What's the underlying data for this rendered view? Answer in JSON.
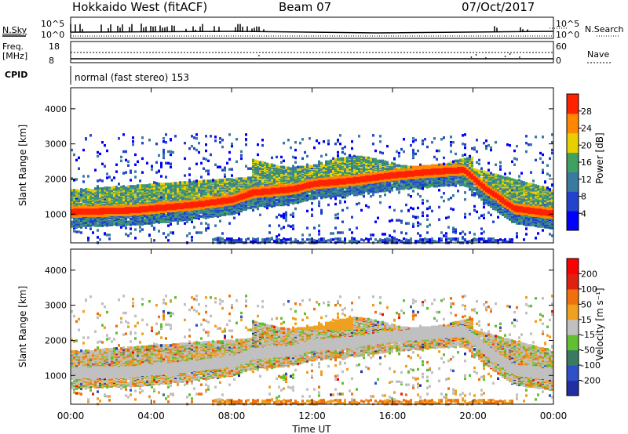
{
  "header": {
    "station": "Hokkaido West (fitACF)",
    "beam": "Beam 07",
    "date": "07/Oct/2017"
  },
  "side_labels": {
    "nsky": "N.Sky",
    "nsearch": "N.Search",
    "freq": "Freq.",
    "freq_unit": "[MHz]",
    "nave": "Nave",
    "cpid": "CPID",
    "noise_top": "10^5",
    "noise_bottom": "10^0",
    "freq_top": "18",
    "freq_bottom": "8",
    "nave_top": "60",
    "nave_bottom": "0"
  },
  "mode_label": "normal (fast stereo) 153",
  "chart_data": [
    {
      "type": "heatmap",
      "title": "",
      "ylabel": "Slant Range [km]",
      "xlabel": "",
      "colorbar_label": "Power [dB]",
      "colorbar_ticks": [
        "4",
        "8",
        "12",
        "16",
        "20",
        "24",
        "28"
      ],
      "colorbar_colors": [
        "#0000ff",
        "#2244cc",
        "#3a7aa0",
        "#40a060",
        "#e8d000",
        "#ff8800",
        "#ff2200"
      ],
      "ylim": [
        180,
        4600
      ],
      "yticks": [
        "1000",
        "2000",
        "3000",
        "4000"
      ]
    },
    {
      "type": "heatmap",
      "title": "",
      "ylabel": "Slant Range [km]",
      "xlabel": "Time UT",
      "colorbar_label": "Velocity [m s⁻¹]",
      "colorbar_ticks": [
        "200",
        "100",
        "50",
        "15",
        "-15",
        "-50",
        "-100",
        "-200"
      ],
      "colorbar_colors": [
        "#2030a0",
        "#3050c8",
        "#3a7a60",
        "#60c030",
        "#c0c0c0",
        "#f0a020",
        "#f07010",
        "#e02010",
        "#ff0000"
      ],
      "ylim": [
        180,
        4600
      ],
      "yticks": [
        "1000",
        "2000",
        "3000",
        "4000"
      ]
    }
  ],
  "x_axis": {
    "label": "Time UT",
    "ticks": [
      "00:00",
      "04:00",
      "08:00",
      "12:00",
      "16:00",
      "20:00",
      "00:00"
    ]
  }
}
